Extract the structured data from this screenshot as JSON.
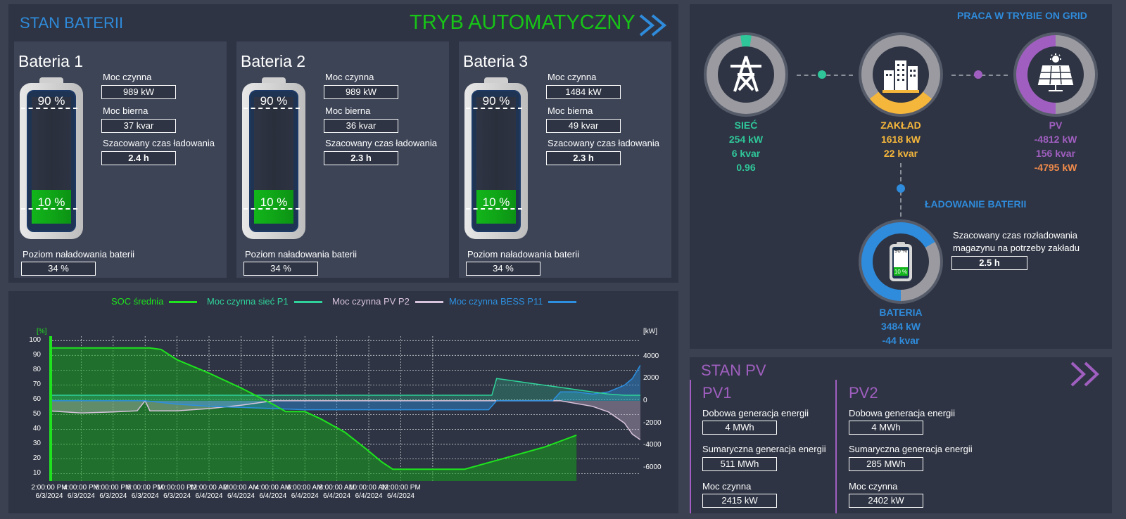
{
  "stan_baterii": {
    "title": "STAN BATERII",
    "mode": "TRYB AUTOMATYCZNY",
    "labels": {
      "moc_czynna": "Moc czynna",
      "moc_bierna": "Moc bierna",
      "czas": "Szacowany czas ładowania",
      "poziom": "Poziom naładowania baterii",
      "upper": "90 %",
      "lower": "10 %"
    },
    "batteries": [
      {
        "name": "Bateria 1",
        "moc_czynna": "989 kW",
        "moc_bierna": "37 kvar",
        "czas": "2.4 h",
        "poziom": "34 %"
      },
      {
        "name": "Bateria 2",
        "moc_czynna": "989 kW",
        "moc_bierna": "36 kvar",
        "czas": "2.3 h",
        "poziom": "34 %"
      },
      {
        "name": "Bateria 3",
        "moc_czynna": "1484 kW",
        "moc_bierna": "49 kvar",
        "czas": "2.3 h",
        "poziom": "34 %"
      }
    ]
  },
  "grid": {
    "mode": "PRACA W TRYBIE ON GRID",
    "siec": {
      "name": "SIEĆ",
      "p": "254 kW",
      "q": "6 kvar",
      "pf": "0.96",
      "color": "#2fc79a"
    },
    "zaklad": {
      "name": "ZAKŁAD",
      "p": "1618 kW",
      "q": "22 kvar",
      "color": "#f5b63c"
    },
    "pv": {
      "name": "PV",
      "p": "-4812 kW",
      "q": "156 kvar",
      "extra": "-4795 kW",
      "color": "#a05fc0",
      "extra_color": "#f08a4b"
    },
    "ladowanie": "ŁADOWANIE BATERII",
    "bateria": {
      "name": "BATERIA",
      "p": "3484 kW",
      "q": "-44 kvar",
      "color": "#2f8bdb"
    },
    "rozladowanie_label": "Szacowany czas rozładowania magazynu na potrzeby zakładu",
    "rozladowanie": "2.5 h",
    "mini_upper": "90 %",
    "mini_lower": "10 %"
  },
  "stan_pv": {
    "title": "STAN PV",
    "labels": {
      "dobowa": "Dobowa generacja energii",
      "sumaryczna": "Sumaryczna generacja energii",
      "moc": "Moc czynna"
    },
    "units": [
      {
        "name": "PV1",
        "dobowa": "4 MWh",
        "sumaryczna": "511 MWh",
        "moc": "2415 kW"
      },
      {
        "name": "PV2",
        "dobowa": "4 MWh",
        "sumaryczna": "285 MWh",
        "moc": "2402 kW"
      }
    ]
  },
  "chart_data": {
    "type": "line",
    "legend": [
      "SOC średnia",
      "Moc czynna sieć P1",
      "Moc czynna PV P2",
      "Moc czynna BESS P11"
    ],
    "colors": {
      "soc": "#1ee31e",
      "siec": "#2fd29a",
      "pv": "#d9c4dd",
      "bess": "#2d8fe0"
    },
    "yleft_unit": "[%]",
    "yright_unit": "[kW]",
    "yleft_ticks": [
      "100",
      "90",
      "80",
      "70",
      "60",
      "50",
      "40",
      "30",
      "20",
      "10"
    ],
    "yright_ticks": [
      "4000",
      "2000",
      "0",
      "-2000",
      "-4000",
      "-6000"
    ],
    "xlabels": [
      [
        "2:00:00 PM",
        "6/3/2024"
      ],
      [
        "4:00:00 PM",
        "6/3/2024"
      ],
      [
        "6:00:00 PM",
        "6/3/2024"
      ],
      [
        "8:00:00 PM",
        "6/3/2024"
      ],
      [
        "10:00:00 PM",
        "6/3/2024"
      ],
      [
        "12:00:00 AM",
        "6/4/2024"
      ],
      [
        "2:00:00 AM",
        "6/4/2024"
      ],
      [
        "4:00:00 AM",
        "6/4/2024"
      ],
      [
        "6:00:00 AM",
        "6/4/2024"
      ],
      [
        "8:00:00 AM",
        "6/4/2024"
      ],
      [
        "10:00:00 AM",
        "6/4/2024"
      ],
      [
        "12:00:00 PM",
        "6/4/2024"
      ]
    ],
    "x_hours": [
      0,
      2,
      4,
      6,
      8,
      10,
      12,
      14,
      16,
      18,
      20,
      22,
      24
    ],
    "yleft_range": [
      5,
      103
    ],
    "yright_range": [
      -7200,
      5800
    ],
    "soc": [
      [
        0,
        95
      ],
      [
        6.3,
        95
      ],
      [
        7,
        94
      ],
      [
        8,
        87
      ],
      [
        10,
        78
      ],
      [
        12,
        68
      ],
      [
        14,
        57
      ],
      [
        14.8,
        52
      ],
      [
        16,
        52
      ],
      [
        17,
        47
      ],
      [
        18.5,
        38
      ],
      [
        19.8,
        27
      ],
      [
        20.8,
        18
      ],
      [
        21.5,
        13
      ],
      [
        23.5,
        13
      ],
      [
        26,
        13
      ],
      [
        29,
        22
      ],
      [
        31,
        28
      ],
      [
        32.5,
        34
      ],
      [
        33,
        36
      ]
    ],
    "siec": [
      [
        0,
        500
      ],
      [
        10,
        500
      ],
      [
        20,
        500
      ],
      [
        27.7,
        500
      ],
      [
        28,
        2000
      ],
      [
        29,
        1800
      ],
      [
        30,
        1600
      ],
      [
        31,
        1400
      ],
      [
        32,
        1200
      ],
      [
        33,
        1000
      ],
      [
        34,
        800
      ],
      [
        35,
        600
      ],
      [
        36,
        500
      ],
      [
        37,
        500
      ]
    ],
    "pv": [
      [
        0,
        -900
      ],
      [
        2,
        -1100
      ],
      [
        4,
        -1000
      ],
      [
        5.5,
        -900
      ],
      [
        6,
        0
      ],
      [
        6.3,
        -900
      ],
      [
        8,
        -900
      ],
      [
        10,
        -700
      ],
      [
        12,
        -400
      ],
      [
        14,
        0
      ],
      [
        16,
        0
      ],
      [
        20,
        0
      ],
      [
        24,
        0
      ],
      [
        28,
        0
      ],
      [
        30,
        0
      ],
      [
        32,
        0
      ],
      [
        34,
        -500
      ],
      [
        35,
        -1000
      ],
      [
        36,
        -2000
      ],
      [
        36.5,
        -3000
      ],
      [
        37,
        -3500
      ]
    ],
    "bess": [
      [
        0,
        0
      ],
      [
        6,
        0
      ],
      [
        8,
        -300
      ],
      [
        10,
        -500
      ],
      [
        14,
        -700
      ],
      [
        16,
        -800
      ],
      [
        20,
        -800
      ],
      [
        24,
        -800
      ],
      [
        27.5,
        -800
      ],
      [
        28,
        0
      ],
      [
        30,
        0
      ],
      [
        31.5,
        0
      ],
      [
        32,
        800
      ],
      [
        33,
        800
      ],
      [
        34,
        600
      ],
      [
        35,
        800
      ],
      [
        36,
        1400
      ],
      [
        36.5,
        2000
      ],
      [
        37,
        3200
      ]
    ]
  }
}
